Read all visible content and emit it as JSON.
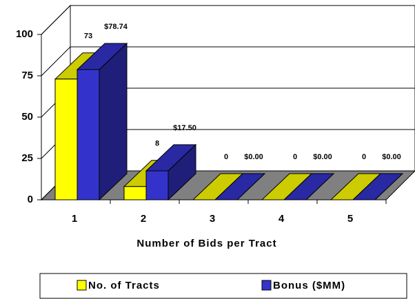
{
  "chart_data": {
    "type": "bar3d",
    "categories": [
      "1",
      "2",
      "3",
      "4",
      "5"
    ],
    "series": [
      {
        "name": "No. of Tracts",
        "color": "#ffff00",
        "values": [
          73,
          8,
          0,
          0,
          0
        ]
      },
      {
        "name": "Bonus ($MM)",
        "color": "#3333cc",
        "values": [
          78.74,
          17.5,
          0,
          0,
          0
        ],
        "value_labels": [
          "$78.74",
          "$17.50",
          "$0.00",
          "$0.00",
          "$0.00"
        ]
      }
    ],
    "ylim": [
      0,
      100
    ],
    "yticks": [
      0,
      25,
      50,
      75,
      100
    ],
    "grid": true,
    "xlabel": "Number of Bids per Tract",
    "legend": "bottom"
  }
}
